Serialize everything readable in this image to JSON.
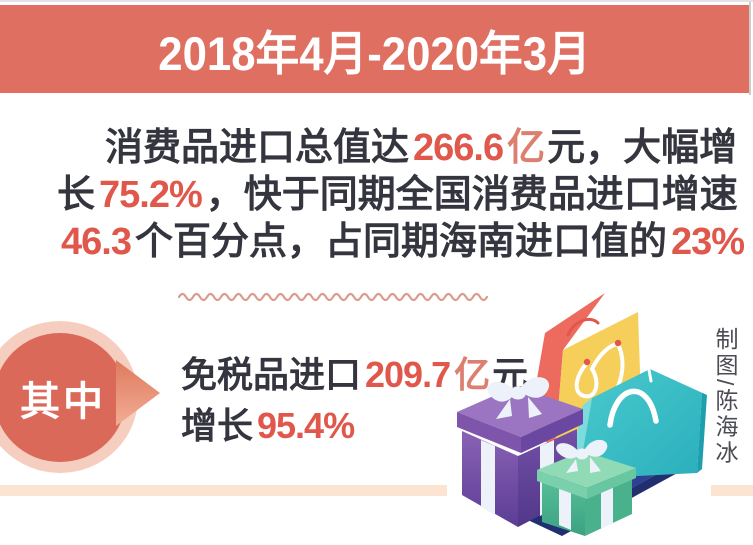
{
  "banner": {
    "title": "2018年4月-2020年3月"
  },
  "paragraph": {
    "line1": [
      {
        "t": "消费品进口总值达"
      },
      {
        "t": "266.6"
      },
      {
        "t": "亿"
      },
      {
        "t": "元，大幅增"
      }
    ],
    "line2": [
      {
        "t": "长"
      },
      {
        "t": "75.2%"
      },
      {
        "t": "，快于同期全国消费品进口增速"
      }
    ],
    "line3": [
      {
        "t": "46.3"
      },
      {
        "t": "个百分点，占同期海南进口值的"
      },
      {
        "t": "23%"
      }
    ]
  },
  "badge": {
    "label": "其中"
  },
  "substat": {
    "line1": [
      {
        "t": "免税品进口"
      },
      {
        "t": "209.7"
      },
      {
        "t": "亿"
      },
      {
        "t": "元"
      }
    ],
    "line2": [
      {
        "t": "增长"
      },
      {
        "t": "95.4%"
      }
    ]
  },
  "credit": {
    "text": "制图/陈海冰"
  },
  "colors": {
    "banner_bg": "#df6f60",
    "accent_red": "#e0584c",
    "accent_salmon": "#dc7f70",
    "text_dark": "#34353e",
    "wave": "#dc9a8b",
    "badge_ring": "#f6cebf",
    "badge_circle": "#db695a",
    "peach_strip": "#fbe4d2",
    "platform_navy": "#2e4190",
    "bag_teal": "#3cc2ca",
    "bag_yellow": "#f6ce5a",
    "bag_salmon": "#ed6a5e",
    "gift_purple": "#7a52a8",
    "gift_green": "#58bd97"
  },
  "chart_data": {
    "type": "table",
    "title": "2018年4月-2020年3月",
    "rows": [
      {
        "metric": "消费品进口总值",
        "value": 266.6,
        "unit": "亿元"
      },
      {
        "metric": "消费品进口大幅增长",
        "value": 75.2,
        "unit": "%"
      },
      {
        "metric": "快于同期全国消费品进口增速",
        "value": 46.3,
        "unit": "个百分点"
      },
      {
        "metric": "占同期海南进口值",
        "value": 23,
        "unit": "%"
      },
      {
        "metric": "免税品进口",
        "value": 209.7,
        "unit": "亿元"
      },
      {
        "metric": "免税品进口增长",
        "value": 95.4,
        "unit": "%"
      }
    ]
  }
}
